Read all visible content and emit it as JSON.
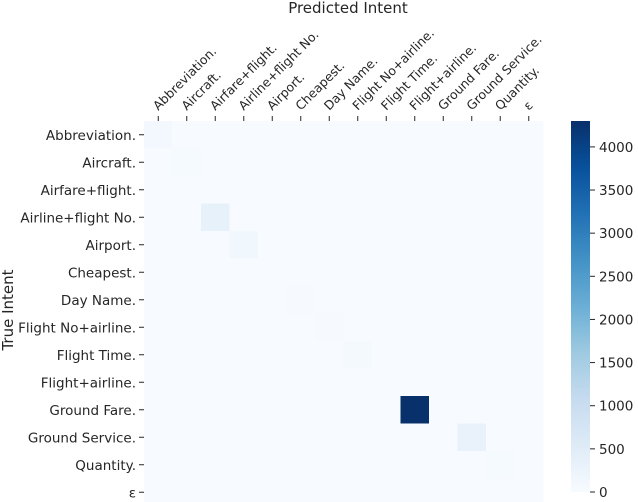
{
  "chart_data": {
    "type": "heatmap",
    "title": "Predicted Intent",
    "xlabel": "Predicted Intent",
    "ylabel": "True Intent",
    "x_categories": [
      "Abbreviation.",
      "Aircraft.",
      "Airfare+flight.",
      "Airline+flight No.",
      "Airport.",
      "Cheapest.",
      "Day Name.",
      "Flight No+airline.",
      "Flight Time.",
      "Flight+airline.",
      "Ground Fare.",
      "Ground Service.",
      "Quantity.",
      "ε"
    ],
    "y_categories": [
      "Abbreviation.",
      "Aircraft.",
      "Airfare+flight.",
      "Airline+flight No.",
      "Airport.",
      "Cheapest.",
      "Day Name.",
      "Flight No+airline.",
      "Flight Time.",
      "Flight+airline.",
      "Ground Fare.",
      "Ground Service.",
      "Quantity.",
      "ε"
    ],
    "values": [
      [
        100,
        0,
        0,
        0,
        0,
        0,
        0,
        0,
        0,
        0,
        0,
        0,
        0,
        0
      ],
      [
        0,
        50,
        0,
        0,
        0,
        0,
        0,
        0,
        0,
        0,
        0,
        0,
        0,
        0
      ],
      [
        0,
        0,
        0,
        0,
        0,
        0,
        0,
        0,
        0,
        0,
        0,
        0,
        0,
        0
      ],
      [
        0,
        0,
        350,
        0,
        0,
        0,
        0,
        0,
        0,
        0,
        0,
        0,
        0,
        0
      ],
      [
        0,
        0,
        0,
        150,
        0,
        0,
        0,
        0,
        0,
        0,
        0,
        0,
        0,
        0
      ],
      [
        0,
        0,
        0,
        0,
        10,
        0,
        0,
        0,
        0,
        0,
        0,
        0,
        0,
        0
      ],
      [
        0,
        0,
        0,
        0,
        0,
        20,
        0,
        0,
        0,
        0,
        0,
        0,
        0,
        0
      ],
      [
        0,
        0,
        0,
        0,
        0,
        0,
        30,
        0,
        0,
        0,
        0,
        0,
        0,
        0
      ],
      [
        0,
        0,
        0,
        0,
        0,
        0,
        0,
        70,
        0,
        0,
        0,
        0,
        0,
        0
      ],
      [
        0,
        0,
        0,
        0,
        0,
        0,
        0,
        0,
        0,
        0,
        0,
        0,
        0,
        0
      ],
      [
        0,
        0,
        0,
        0,
        0,
        0,
        0,
        0,
        0,
        4300,
        0,
        0,
        0,
        0
      ],
      [
        0,
        0,
        0,
        0,
        0,
        0,
        0,
        0,
        0,
        0,
        0,
        300,
        0,
        0
      ],
      [
        0,
        0,
        0,
        0,
        0,
        0,
        0,
        0,
        0,
        0,
        0,
        0,
        50,
        0
      ],
      [
        0,
        0,
        0,
        0,
        0,
        0,
        0,
        0,
        0,
        0,
        0,
        0,
        0,
        0
      ]
    ],
    "colorbar": {
      "range": [
        0,
        4300
      ],
      "ticks": [
        "0",
        "500",
        "1000",
        "1500",
        "2000",
        "2500",
        "3000",
        "3500",
        "4000"
      ],
      "colormap": "Blues",
      "low_color": "#f7fbff",
      "high_color": "#08306b"
    },
    "grid": false
  }
}
